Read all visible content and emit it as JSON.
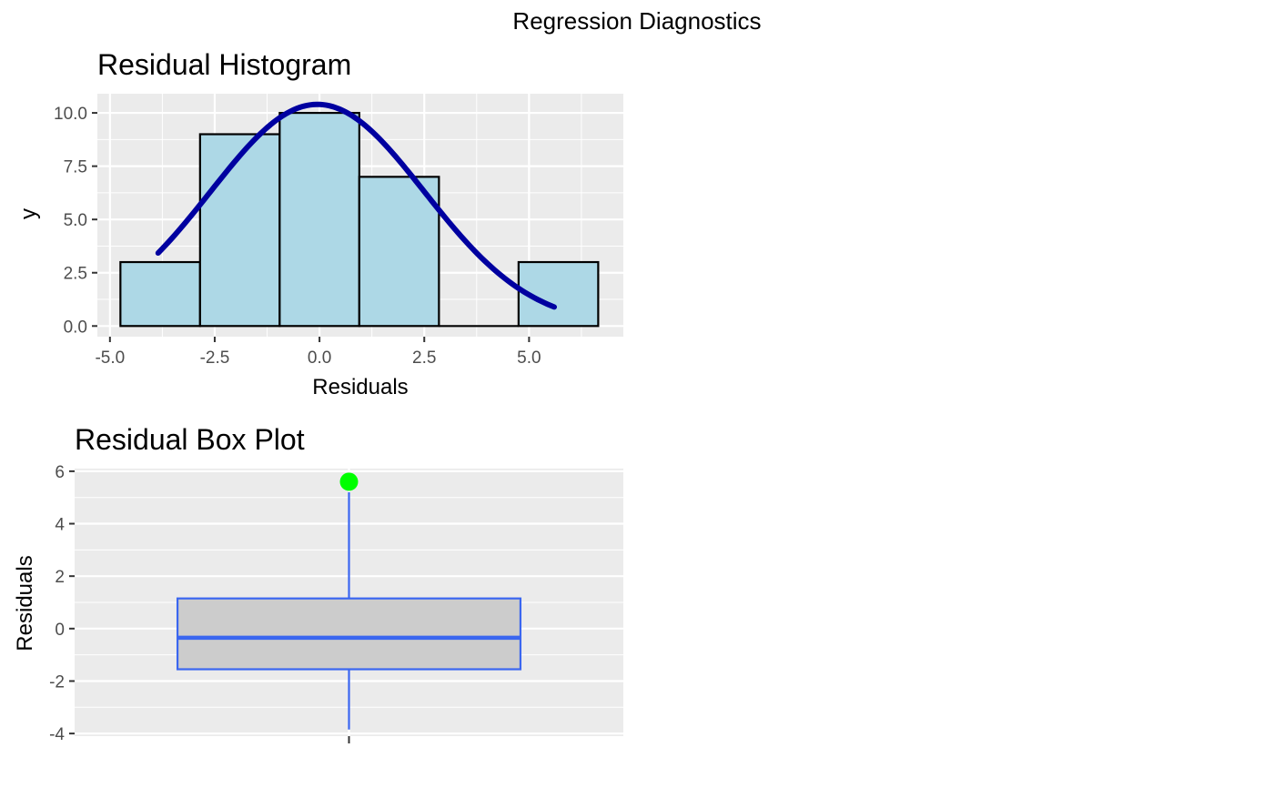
{
  "title": "Regression Diagnostics",
  "colors": {
    "panel_bg": "#ebebeb",
    "grid": "#ffffff",
    "bar_fill": "#add8e6",
    "bar_stroke": "#000000",
    "curve": "#0000a0",
    "box_fill": "#cccccc",
    "box_stroke": "#3a66f0",
    "outlier": "#00ff00"
  },
  "chart_data": [
    {
      "type": "bar",
      "subtype": "histogram-with-density-curve",
      "title": "Residual Histogram",
      "xlabel": "Residuals",
      "ylabel": "y",
      "xlim": [
        -5.3,
        7.25
      ],
      "ylim": [
        -0.5,
        10.9
      ],
      "xticks": [
        -5.0,
        -2.5,
        0.0,
        2.5,
        5.0
      ],
      "xtick_labels": [
        "-5.0",
        "-2.5",
        "0.0",
        "2.5",
        "5.0"
      ],
      "yticks": [
        0.0,
        2.5,
        5.0,
        7.5,
        10.0
      ],
      "ytick_labels": [
        "0.0",
        "2.5",
        "5.0",
        "7.5",
        "10.0"
      ],
      "bins": [
        {
          "x0": -4.75,
          "x1": -2.85,
          "count": 3
        },
        {
          "x0": -2.85,
          "x1": -0.95,
          "count": 9
        },
        {
          "x0": -0.95,
          "x1": 0.95,
          "count": 10
        },
        {
          "x0": 0.95,
          "x1": 2.85,
          "count": 7
        },
        {
          "x0": 2.85,
          "x1": 4.75,
          "count": 0
        },
        {
          "x0": 4.75,
          "x1": 6.65,
          "count": 3
        }
      ],
      "curve": {
        "mean": -0.05,
        "sd": 2.55,
        "peak": 10.4,
        "x_start": -3.85,
        "x_end": 5.6
      },
      "grid": true,
      "legend": "none"
    },
    {
      "type": "box",
      "title": "Residual Box Plot",
      "xlabel": "",
      "ylabel": "Residuals",
      "ylim": [
        -4.1,
        6.1
      ],
      "yticks": [
        -4,
        -2,
        0,
        2,
        4,
        6
      ],
      "ytick_labels": [
        "-4",
        "-2",
        "0",
        "2",
        "4",
        "6"
      ],
      "q1": -1.55,
      "median": -0.35,
      "q3": 1.15,
      "whisker_low": -3.85,
      "whisker_high": 5.2,
      "outliers": [
        5.6
      ],
      "grid": true,
      "legend": "none"
    }
  ]
}
